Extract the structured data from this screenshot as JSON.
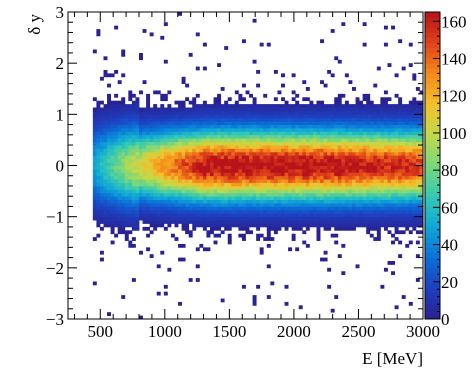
{
  "chart_data": {
    "type": "heatmap",
    "title": "",
    "xlabel": "E [MeV]",
    "ylabel": "δ y",
    "xlim": [
      250,
      3000
    ],
    "ylim": [
      -3,
      3
    ],
    "x_ticks": [
      500,
      1000,
      1500,
      2000,
      2500,
      3000
    ],
    "x_tick_labels": [
      "500",
      "1000",
      "1500",
      "2000",
      "2500",
      "3000"
    ],
    "y_ticks": [
      -3,
      -2,
      -1,
      0,
      1,
      2,
      3
    ],
    "y_tick_labels": [
      "−3",
      "−2",
      "−1",
      "0",
      "1",
      "2",
      "3"
    ],
    "z_range": [
      0,
      165
    ],
    "z_ticks": [
      0,
      20,
      40,
      60,
      80,
      100,
      120,
      140,
      160
    ],
    "z_tick_labels": [
      "0",
      "20",
      "40",
      "60",
      "80",
      "100",
      "120",
      "140",
      "160"
    ],
    "grid": false,
    "colormap": "rainbow (blue-cyan-green-yellow-orange-red)",
    "distribution": {
      "x_min": 430,
      "x_max": 3000,
      "y_center": 0.0,
      "core_sigma_y": 0.45,
      "peak_count_near_E": 2250,
      "peak_count": 160,
      "tail_extent_y": [
        -2.7,
        2.7
      ]
    },
    "bins": {
      "x_count": 100,
      "y_count": 90
    }
  },
  "colors": {
    "axis": "#000000",
    "background": "#ffffff",
    "palette": [
      "#2a1f8f",
      "#1e3fbf",
      "#0a6fd8",
      "#10a6d6",
      "#33c9b4",
      "#7ad77a",
      "#c2d94a",
      "#f2c12b",
      "#f58a1b",
      "#e0421a",
      "#b8121a"
    ]
  }
}
